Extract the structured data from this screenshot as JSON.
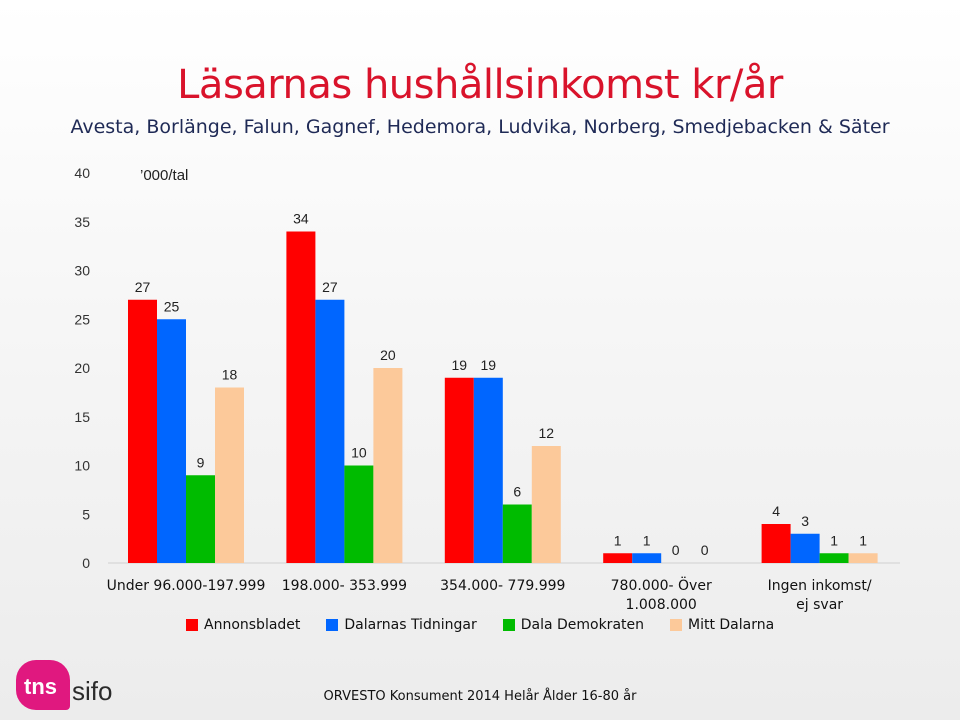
{
  "header": {
    "title": "Läsarnas hushållsinkomst kr/år",
    "subtitle": "Avesta, Borlänge, Falun, Gagnef, Hedemora, Ludvika, Norberg, Smedjebacken & Säter"
  },
  "chart_data": {
    "type": "bar",
    "unit_label": "’000/tal",
    "ylim": [
      0,
      40
    ],
    "yticks": [
      0,
      5,
      10,
      15,
      20,
      25,
      30,
      35,
      40
    ],
    "categories": [
      "Under 96.000-197.999",
      "198.000- 353.999",
      "354.000- 779.999",
      "780.000- Över\n1.008.000",
      "Ingen inkomst/\nej svar"
    ],
    "series": [
      {
        "name": "Annonsbladet",
        "color": "#ff0000",
        "values": [
          27,
          34,
          19,
          1,
          4
        ]
      },
      {
        "name": "Dalarnas Tidningar",
        "color": "#0066ff",
        "values": [
          25,
          27,
          19,
          1,
          3
        ]
      },
      {
        "name": "Dala Demokraten",
        "color": "#00bb00",
        "values": [
          9,
          10,
          6,
          0,
          1
        ]
      },
      {
        "name": "Mitt Dalarna",
        "color": "#fcc99a",
        "values": [
          18,
          20,
          12,
          0,
          1
        ]
      }
    ],
    "grid": false,
    "legend_position": "bottom"
  },
  "logo": {
    "mark": "tns",
    "text": "sifo"
  },
  "footer": "ORVESTO Konsument 2014 Helår Ålder 16-80 år"
}
